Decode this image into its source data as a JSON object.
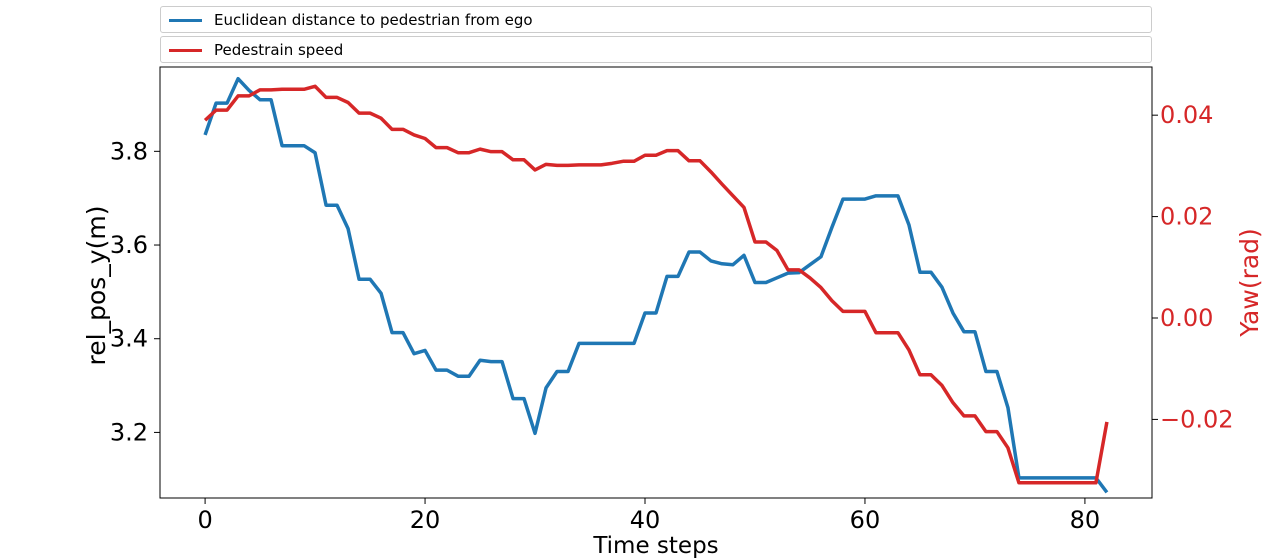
{
  "chart_data": {
    "type": "line",
    "xlabel": "Time steps",
    "ylabel_left": "rel_pos_y(m)",
    "ylabel_right": "Yaw(rad)",
    "xlim": [
      -4.1,
      86.1
    ],
    "ylim_left": [
      3.06,
      3.98
    ],
    "ylim_right": [
      -0.0355,
      0.0495
    ],
    "x_ticks": [
      0,
      20,
      40,
      60,
      80
    ],
    "y_left_ticks": [
      3.2,
      3.4,
      3.6,
      3.8
    ],
    "y_left_tick_labels": [
      "3.2",
      "3.4",
      "3.6",
      "3.8"
    ],
    "y_right_ticks": [
      -0.02,
      0.0,
      0.02,
      0.04
    ],
    "y_right_tick_labels": [
      "−0.02",
      "0.00",
      "0.02",
      "0.04"
    ],
    "grid": false,
    "legend_placement": "above plot",
    "series": [
      {
        "name": "Euclidean distance to pedestrian from ego",
        "color": "#1f77b4",
        "axis": "left",
        "x": [
          0,
          1,
          2,
          3,
          4,
          5,
          6,
          7,
          8,
          9,
          10,
          11,
          12,
          13,
          14,
          15,
          16,
          17,
          18,
          19,
          20,
          21,
          22,
          23,
          24,
          25,
          26,
          27,
          28,
          29,
          30,
          31,
          32,
          33,
          34,
          35,
          36,
          37,
          38,
          39,
          40,
          41,
          42,
          43,
          44,
          45,
          46,
          47,
          48,
          49,
          50,
          51,
          52,
          53,
          54,
          55,
          56,
          57,
          58,
          59,
          60,
          61,
          62,
          63,
          64,
          65,
          66,
          67,
          68,
          69,
          70,
          71,
          72,
          73,
          74,
          75,
          76,
          77,
          78,
          79,
          80,
          81,
          82
        ],
        "y": [
          3.835,
          3.903,
          3.903,
          3.955,
          3.93,
          3.91,
          3.91,
          3.812,
          3.812,
          3.812,
          3.797,
          3.685,
          3.685,
          3.635,
          3.527,
          3.527,
          3.497,
          3.413,
          3.413,
          3.368,
          3.375,
          3.333,
          3.333,
          3.32,
          3.32,
          3.354,
          3.351,
          3.351,
          3.272,
          3.272,
          3.198,
          3.295,
          3.33,
          3.33,
          3.39,
          3.39,
          3.39,
          3.39,
          3.39,
          3.39,
          3.455,
          3.455,
          3.533,
          3.533,
          3.585,
          3.585,
          3.566,
          3.56,
          3.558,
          3.578,
          3.52,
          3.52,
          3.53,
          3.54,
          3.541,
          3.558,
          3.575,
          3.638,
          3.698,
          3.698,
          3.698,
          3.705,
          3.705,
          3.705,
          3.643,
          3.542,
          3.542,
          3.51,
          3.455,
          3.415,
          3.415,
          3.33,
          3.33,
          3.253,
          3.103,
          3.103,
          3.103,
          3.103,
          3.103,
          3.103,
          3.103,
          3.103,
          3.072
        ]
      },
      {
        "name": "Pedestrain speed",
        "color": "#d62728",
        "axis": "right",
        "x": [
          0,
          1,
          2,
          3,
          4,
          5,
          6,
          7,
          8,
          9,
          10,
          11,
          12,
          13,
          14,
          15,
          16,
          17,
          18,
          19,
          20,
          21,
          22,
          23,
          24,
          25,
          26,
          27,
          28,
          29,
          30,
          31,
          32,
          33,
          34,
          35,
          36,
          37,
          38,
          39,
          40,
          41,
          42,
          43,
          44,
          45,
          46,
          47,
          48,
          49,
          50,
          51,
          52,
          53,
          54,
          55,
          56,
          57,
          58,
          59,
          60,
          61,
          62,
          63,
          64,
          65,
          66,
          67,
          68,
          69,
          70,
          71,
          72,
          73,
          74,
          75,
          76,
          77,
          78,
          79,
          80,
          81,
          82
        ],
        "y": [
          0.039,
          0.041,
          0.041,
          0.0438,
          0.0438,
          0.045,
          0.045,
          0.0451,
          0.0451,
          0.0451,
          0.0457,
          0.0435,
          0.0435,
          0.0425,
          0.0404,
          0.0404,
          0.0394,
          0.0372,
          0.0372,
          0.0361,
          0.0354,
          0.0336,
          0.0336,
          0.0326,
          0.0326,
          0.0333,
          0.0328,
          0.0328,
          0.0312,
          0.0312,
          0.0292,
          0.0303,
          0.0301,
          0.0301,
          0.0302,
          0.0302,
          0.0302,
          0.0305,
          0.0309,
          0.0309,
          0.0321,
          0.0321,
          0.033,
          0.033,
          0.031,
          0.031,
          0.0288,
          0.0264,
          0.0241,
          0.0218,
          0.015,
          0.015,
          0.0133,
          0.0095,
          0.0095,
          0.0079,
          0.006,
          0.0034,
          0.0013,
          0.0013,
          0.0013,
          -0.0029,
          -0.0029,
          -0.0029,
          -0.0063,
          -0.0112,
          -0.0112,
          -0.0133,
          -0.0167,
          -0.0193,
          -0.0193,
          -0.0224,
          -0.0224,
          -0.0256,
          -0.0325,
          -0.0325,
          -0.0325,
          -0.0325,
          -0.0325,
          -0.0325,
          -0.0325,
          -0.0325,
          -0.0205
        ]
      }
    ]
  }
}
